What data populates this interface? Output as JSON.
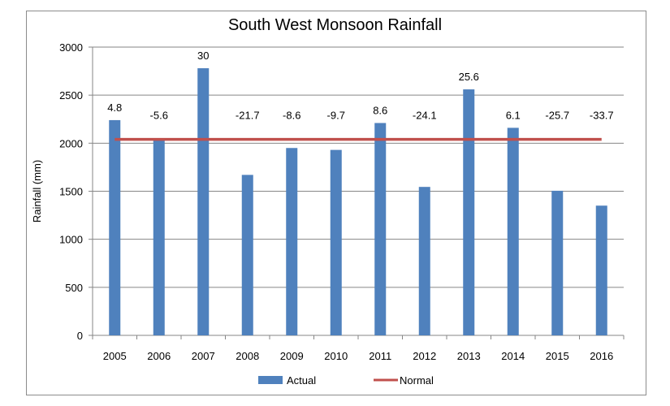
{
  "chart_data": {
    "type": "bar",
    "title": "South West Monsoon Rainfall",
    "xlabel": "",
    "ylabel": "Rainfall (mm)",
    "ylim": [
      0,
      3000
    ],
    "yticks": [
      0,
      500,
      1000,
      1500,
      2000,
      2500,
      3000
    ],
    "grid": true,
    "legend_position": "bottom",
    "categories": [
      "2005",
      "2006",
      "2007",
      "2008",
      "2009",
      "2010",
      "2011",
      "2012",
      "2013",
      "2014",
      "2015",
      "2016"
    ],
    "series": [
      {
        "name": "Actual",
        "type": "bar",
        "color": "#4f81bd",
        "values": [
          2240,
          2035,
          2780,
          1670,
          1950,
          1930,
          2210,
          1545,
          2560,
          2160,
          1505,
          1350
        ],
        "data_labels": [
          "4.8",
          "-5.6",
          "30",
          "-21.7",
          "-8.6",
          "-9.7",
          "8.6",
          "-24.1",
          "25.6",
          "6.1",
          "-25.7",
          "-33.7"
        ]
      },
      {
        "name": "Normal",
        "type": "line",
        "color": "#c0504d",
        "values": [
          2040,
          2040,
          2040,
          2040,
          2040,
          2040,
          2040,
          2040,
          2040,
          2040,
          2040,
          2040
        ]
      }
    ]
  }
}
